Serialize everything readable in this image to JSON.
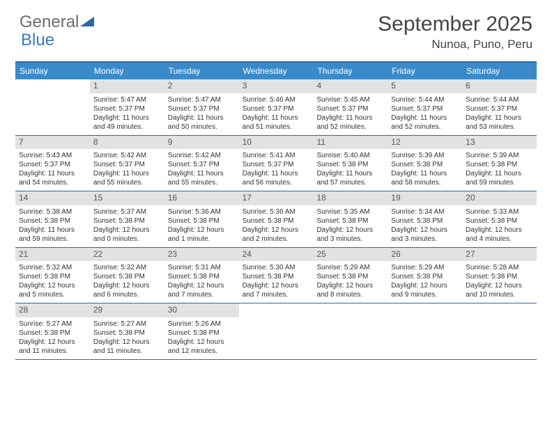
{
  "logo": {
    "text1": "General",
    "text2": "Blue"
  },
  "title": "September 2025",
  "location": "Nunoa, Puno, Peru",
  "colors": {
    "header_bg": "#3a8ac9",
    "border": "#2a6aa8",
    "daynum_bg": "#e2e2e2",
    "logo_gray": "#6b6b6b",
    "logo_blue": "#3a7bbf"
  },
  "weekdays": [
    "Sunday",
    "Monday",
    "Tuesday",
    "Wednesday",
    "Thursday",
    "Friday",
    "Saturday"
  ],
  "weeks": [
    [
      {
        "n": "",
        "sr": "",
        "ss": "",
        "dl": ""
      },
      {
        "n": "1",
        "sr": "Sunrise: 5:47 AM",
        "ss": "Sunset: 5:37 PM",
        "dl": "Daylight: 11 hours and 49 minutes."
      },
      {
        "n": "2",
        "sr": "Sunrise: 5:47 AM",
        "ss": "Sunset: 5:37 PM",
        "dl": "Daylight: 11 hours and 50 minutes."
      },
      {
        "n": "3",
        "sr": "Sunrise: 5:46 AM",
        "ss": "Sunset: 5:37 PM",
        "dl": "Daylight: 11 hours and 51 minutes."
      },
      {
        "n": "4",
        "sr": "Sunrise: 5:45 AM",
        "ss": "Sunset: 5:37 PM",
        "dl": "Daylight: 11 hours and 52 minutes."
      },
      {
        "n": "5",
        "sr": "Sunrise: 5:44 AM",
        "ss": "Sunset: 5:37 PM",
        "dl": "Daylight: 11 hours and 52 minutes."
      },
      {
        "n": "6",
        "sr": "Sunrise: 5:44 AM",
        "ss": "Sunset: 5:37 PM",
        "dl": "Daylight: 11 hours and 53 minutes."
      }
    ],
    [
      {
        "n": "7",
        "sr": "Sunrise: 5:43 AM",
        "ss": "Sunset: 5:37 PM",
        "dl": "Daylight: 11 hours and 54 minutes."
      },
      {
        "n": "8",
        "sr": "Sunrise: 5:42 AM",
        "ss": "Sunset: 5:37 PM",
        "dl": "Daylight: 11 hours and 55 minutes."
      },
      {
        "n": "9",
        "sr": "Sunrise: 5:42 AM",
        "ss": "Sunset: 5:37 PM",
        "dl": "Daylight: 11 hours and 55 minutes."
      },
      {
        "n": "10",
        "sr": "Sunrise: 5:41 AM",
        "ss": "Sunset: 5:37 PM",
        "dl": "Daylight: 11 hours and 56 minutes."
      },
      {
        "n": "11",
        "sr": "Sunrise: 5:40 AM",
        "ss": "Sunset: 5:38 PM",
        "dl": "Daylight: 11 hours and 57 minutes."
      },
      {
        "n": "12",
        "sr": "Sunrise: 5:39 AM",
        "ss": "Sunset: 5:38 PM",
        "dl": "Daylight: 11 hours and 58 minutes."
      },
      {
        "n": "13",
        "sr": "Sunrise: 5:39 AM",
        "ss": "Sunset: 5:38 PM",
        "dl": "Daylight: 11 hours and 59 minutes."
      }
    ],
    [
      {
        "n": "14",
        "sr": "Sunrise: 5:38 AM",
        "ss": "Sunset: 5:38 PM",
        "dl": "Daylight: 11 hours and 59 minutes."
      },
      {
        "n": "15",
        "sr": "Sunrise: 5:37 AM",
        "ss": "Sunset: 5:38 PM",
        "dl": "Daylight: 12 hours and 0 minutes."
      },
      {
        "n": "16",
        "sr": "Sunrise: 5:36 AM",
        "ss": "Sunset: 5:38 PM",
        "dl": "Daylight: 12 hours and 1 minute."
      },
      {
        "n": "17",
        "sr": "Sunrise: 5:36 AM",
        "ss": "Sunset: 5:38 PM",
        "dl": "Daylight: 12 hours and 2 minutes."
      },
      {
        "n": "18",
        "sr": "Sunrise: 5:35 AM",
        "ss": "Sunset: 5:38 PM",
        "dl": "Daylight: 12 hours and 3 minutes."
      },
      {
        "n": "19",
        "sr": "Sunrise: 5:34 AM",
        "ss": "Sunset: 5:38 PM",
        "dl": "Daylight: 12 hours and 3 minutes."
      },
      {
        "n": "20",
        "sr": "Sunrise: 5:33 AM",
        "ss": "Sunset: 5:38 PM",
        "dl": "Daylight: 12 hours and 4 minutes."
      }
    ],
    [
      {
        "n": "21",
        "sr": "Sunrise: 5:32 AM",
        "ss": "Sunset: 5:38 PM",
        "dl": "Daylight: 12 hours and 5 minutes."
      },
      {
        "n": "22",
        "sr": "Sunrise: 5:32 AM",
        "ss": "Sunset: 5:38 PM",
        "dl": "Daylight: 12 hours and 6 minutes."
      },
      {
        "n": "23",
        "sr": "Sunrise: 5:31 AM",
        "ss": "Sunset: 5:38 PM",
        "dl": "Daylight: 12 hours and 7 minutes."
      },
      {
        "n": "24",
        "sr": "Sunrise: 5:30 AM",
        "ss": "Sunset: 5:38 PM",
        "dl": "Daylight: 12 hours and 7 minutes."
      },
      {
        "n": "25",
        "sr": "Sunrise: 5:29 AM",
        "ss": "Sunset: 5:38 PM",
        "dl": "Daylight: 12 hours and 8 minutes."
      },
      {
        "n": "26",
        "sr": "Sunrise: 5:29 AM",
        "ss": "Sunset: 5:38 PM",
        "dl": "Daylight: 12 hours and 9 minutes."
      },
      {
        "n": "27",
        "sr": "Sunrise: 5:28 AM",
        "ss": "Sunset: 5:38 PM",
        "dl": "Daylight: 12 hours and 10 minutes."
      }
    ],
    [
      {
        "n": "28",
        "sr": "Sunrise: 5:27 AM",
        "ss": "Sunset: 5:38 PM",
        "dl": "Daylight: 12 hours and 11 minutes."
      },
      {
        "n": "29",
        "sr": "Sunrise: 5:27 AM",
        "ss": "Sunset: 5:38 PM",
        "dl": "Daylight: 12 hours and 11 minutes."
      },
      {
        "n": "30",
        "sr": "Sunrise: 5:26 AM",
        "ss": "Sunset: 5:38 PM",
        "dl": "Daylight: 12 hours and 12 minutes."
      },
      {
        "n": "",
        "sr": "",
        "ss": "",
        "dl": ""
      },
      {
        "n": "",
        "sr": "",
        "ss": "",
        "dl": ""
      },
      {
        "n": "",
        "sr": "",
        "ss": "",
        "dl": ""
      },
      {
        "n": "",
        "sr": "",
        "ss": "",
        "dl": ""
      }
    ]
  ]
}
